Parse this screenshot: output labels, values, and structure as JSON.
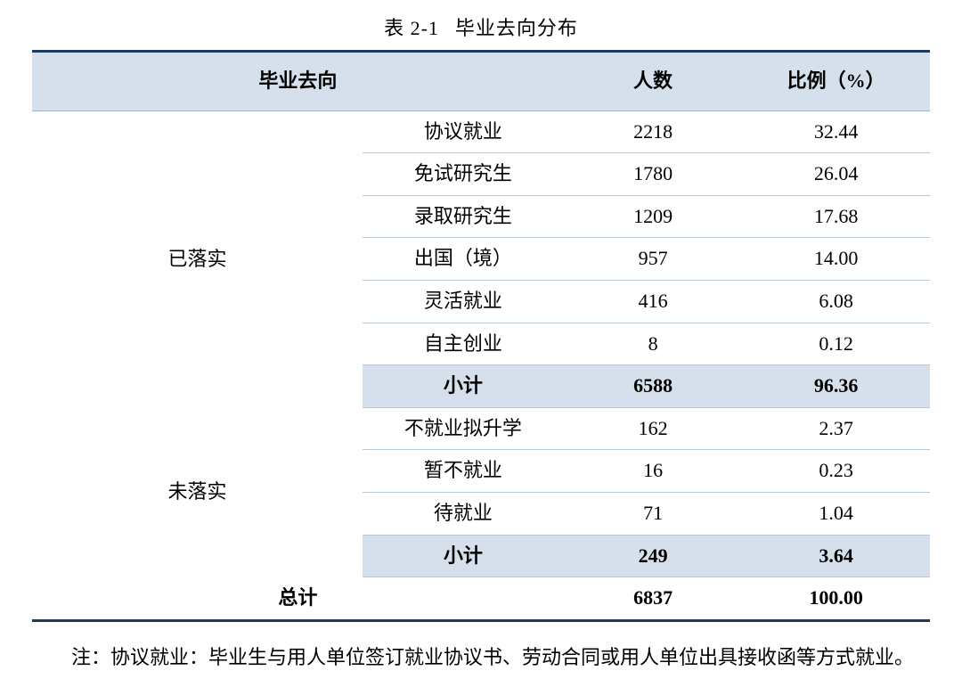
{
  "caption_prefix": "表 2-1",
  "caption_title": "毕业去向分布",
  "colors": {
    "rule": "#1f3763",
    "divider": "#9db3ce",
    "band": "#d6e0ec",
    "text": "#000000",
    "background": "#ffffff"
  },
  "typography": {
    "family": "SimSun",
    "body_size_pt": 16,
    "header_weight": "bold"
  },
  "columns": {
    "destination": "毕业去向",
    "count": "人数",
    "percent": "比例（%）"
  },
  "groups": [
    {
      "name": "已落实",
      "rows": [
        {
          "item": "协议就业",
          "count": "2218",
          "percent": "32.44"
        },
        {
          "item": "免试研究生",
          "count": "1780",
          "percent": "26.04"
        },
        {
          "item": "录取研究生",
          "count": "1209",
          "percent": "17.68"
        },
        {
          "item": "出国（境）",
          "count": "957",
          "percent": "14.00"
        },
        {
          "item": "灵活就业",
          "count": "416",
          "percent": "6.08"
        },
        {
          "item": "自主创业",
          "count": "8",
          "percent": "0.12"
        }
      ],
      "subtotal": {
        "label": "小计",
        "count": "6588",
        "percent": "96.36"
      }
    },
    {
      "name": "未落实",
      "rows": [
        {
          "item": "不就业拟升学",
          "count": "162",
          "percent": "2.37"
        },
        {
          "item": "暂不就业",
          "count": "16",
          "percent": "0.23"
        },
        {
          "item": "待就业",
          "count": "71",
          "percent": "1.04"
        }
      ],
      "subtotal": {
        "label": "小计",
        "count": "249",
        "percent": "3.64"
      }
    }
  ],
  "grand_total": {
    "label": "总计",
    "count": "6837",
    "percent": "100.00"
  },
  "footnote": "注：协议就业：毕业生与用人单位签订就业协议书、劳动合同或用人单位出具接收函等方式就业。"
}
